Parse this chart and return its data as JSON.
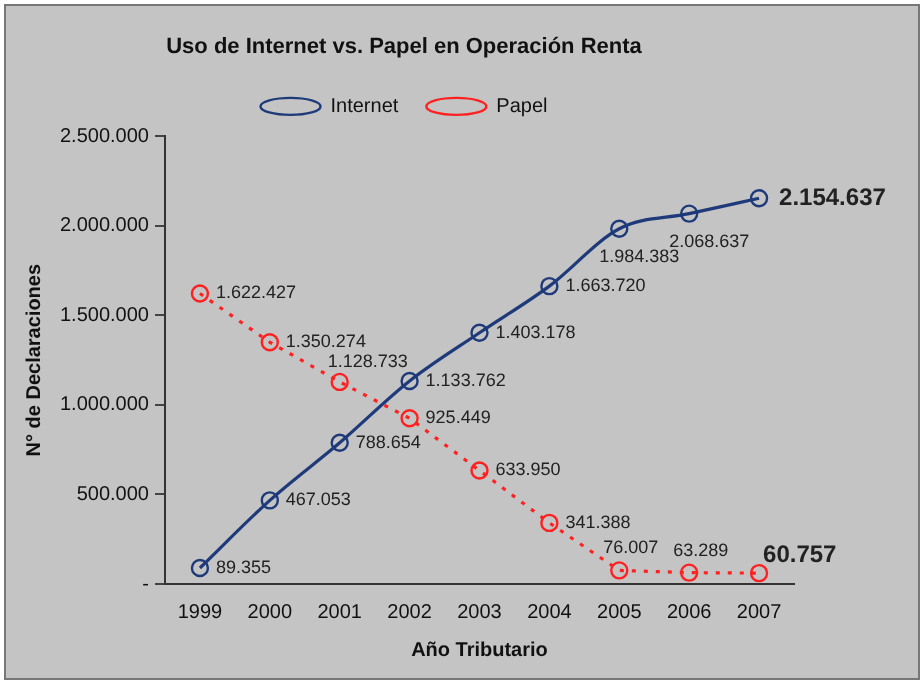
{
  "chart_data": {
    "type": "line",
    "title": "Uso de Internet vs. Papel en Operación Renta",
    "xlabel": "Año Tributario",
    "ylabel": "N° de Declaraciones",
    "categories": [
      "1999",
      "2000",
      "2001",
      "2002",
      "2003",
      "2004",
      "2005",
      "2006",
      "2007"
    ],
    "series": [
      {
        "name": "Internet",
        "color": "#1f3a7a",
        "values": [
          89355,
          467053,
          788654,
          1133762,
          1403178,
          1663720,
          1984383,
          2068637,
          2154637
        ],
        "value_labels": [
          "89.355",
          "467.053",
          "788.654",
          "1.133.762",
          "1.403.178",
          "1.663.720",
          "1.984.383",
          "2.068.637",
          "2.154.637"
        ],
        "line_style": "solid"
      },
      {
        "name": "Papel",
        "color": "#ff2020",
        "values": [
          1622427,
          1350274,
          1128733,
          925449,
          633950,
          341388,
          76007,
          63289,
          60757
        ],
        "value_labels": [
          "1.622.427",
          "1.350.274",
          "1.128.733",
          "925.449",
          "633.950",
          "341.388",
          "76.007",
          "63.289",
          "60.757"
        ],
        "line_style": "dotted"
      }
    ],
    "ylim": [
      0,
      2500000
    ],
    "yticks": [
      {
        "value": 0,
        "label": "-"
      },
      {
        "value": 500000,
        "label": "500.000"
      },
      {
        "value": 1000000,
        "label": "1.000.000"
      },
      {
        "value": 1500000,
        "label": "1.500.000"
      },
      {
        "value": 2000000,
        "label": "2.000.000"
      },
      {
        "value": 2500000,
        "label": "2.500.000"
      }
    ],
    "grid": false,
    "legend": "top",
    "marker": "circle"
  }
}
